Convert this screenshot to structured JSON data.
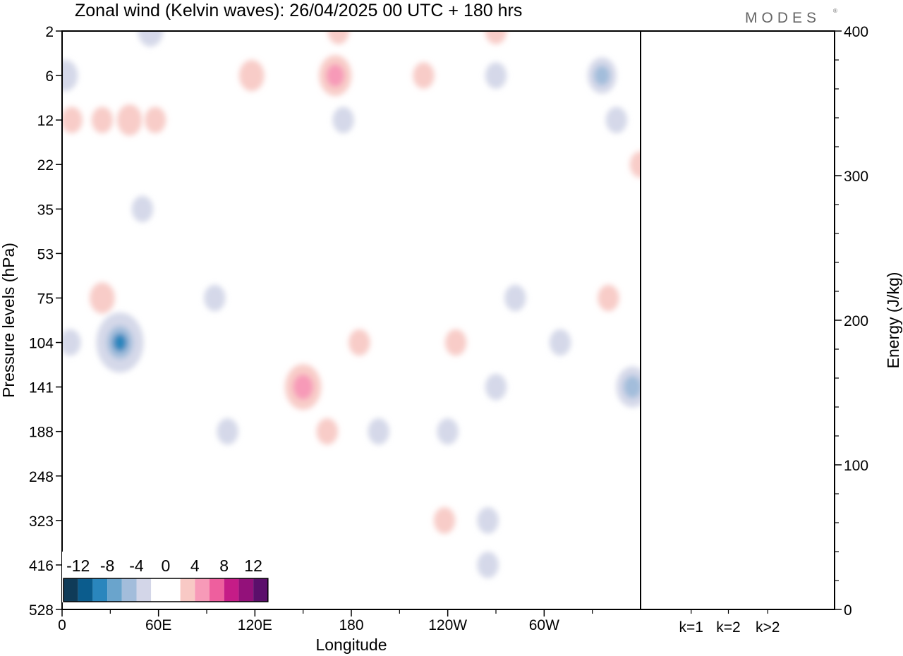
{
  "chart_data": {
    "type": "heatmap",
    "title": "Zonal wind (Kelvin waves):  26/04/2025  00 UTC  + 180 hrs",
    "logo": "MODES",
    "xlabel": "Longitude",
    "ylabel": "Pressure levels (hPa)",
    "x_ticks": [
      "0",
      "60E",
      "120E",
      "180",
      "120W",
      "60W"
    ],
    "x_tick_values": [
      0,
      60,
      120,
      180,
      240,
      300
    ],
    "xlim": [
      0,
      360
    ],
    "y_ticks": [
      "2",
      "6",
      "12",
      "22",
      "35",
      "53",
      "75",
      "104",
      "141",
      "188",
      "248",
      "323",
      "416",
      "528"
    ],
    "y_direction": "top-to-bottom",
    "colorbar": {
      "labels": [
        "-12",
        "-8",
        "-4",
        "0",
        "4",
        "8",
        "12"
      ],
      "colors": [
        "#0f3b58",
        "#0b5c8d",
        "#2a86bd",
        "#6aa4cc",
        "#a3bddb",
        "#d3d6e8",
        "#ffffff",
        "#ffffff",
        "#f8c9c5",
        "#f79ab8",
        "#ee5f9e",
        "#c51c87",
        "#93117a",
        "#5b0f6b"
      ],
      "placement": "bottom-left"
    },
    "contour_levels": [
      -12,
      -10,
      -8,
      -6,
      -4,
      -2,
      2,
      4,
      6,
      8,
      10,
      12
    ],
    "anomalies": [
      {
        "lon": 2,
        "level": "6",
        "value": -3
      },
      {
        "lon": 55,
        "level": "2",
        "value": -3
      },
      {
        "lon": 6,
        "level": "12",
        "value": 2
      },
      {
        "lon": 25,
        "level": "12",
        "value": 2
      },
      {
        "lon": 42,
        "level": "12",
        "value": 3
      },
      {
        "lon": 58,
        "level": "12",
        "value": 2
      },
      {
        "lon": 118,
        "level": "6",
        "value": 3
      },
      {
        "lon": 170,
        "level": "6",
        "value": 5
      },
      {
        "lon": 172,
        "level": "2",
        "value": 2
      },
      {
        "lon": 225,
        "level": "6",
        "value": 2
      },
      {
        "lon": 270,
        "level": "2",
        "value": 2
      },
      {
        "lon": 270,
        "level": "6",
        "value": -2
      },
      {
        "lon": 336,
        "level": "6",
        "value": -4
      },
      {
        "lon": 345,
        "level": "12",
        "value": -2
      },
      {
        "lon": 360,
        "level": "22",
        "value": 2
      },
      {
        "lon": 175,
        "level": "12",
        "value": -2
      },
      {
        "lon": 50,
        "level": "35",
        "value": -2
      },
      {
        "lon": 25,
        "level": "75",
        "value": 3
      },
      {
        "lon": 36,
        "level": "104",
        "value": -9
      },
      {
        "lon": 5,
        "level": "104",
        "value": -2
      },
      {
        "lon": 95,
        "level": "75",
        "value": -2
      },
      {
        "lon": 150,
        "level": "141",
        "value": 6
      },
      {
        "lon": 185,
        "level": "104",
        "value": 2
      },
      {
        "lon": 165,
        "level": "188",
        "value": 2
      },
      {
        "lon": 103,
        "level": "188",
        "value": -2
      },
      {
        "lon": 197,
        "level": "188",
        "value": -2
      },
      {
        "lon": 240,
        "level": "188",
        "value": -2
      },
      {
        "lon": 282,
        "level": "75",
        "value": -2
      },
      {
        "lon": 310,
        "level": "104",
        "value": -2
      },
      {
        "lon": 340,
        "level": "75",
        "value": 2
      },
      {
        "lon": 355,
        "level": "141",
        "value": -5
      },
      {
        "lon": 238,
        "level": "323",
        "value": 2
      },
      {
        "lon": 265,
        "level": "323",
        "value": -2
      },
      {
        "lon": 265,
        "level": "416",
        "value": -2
      },
      {
        "lon": 245,
        "level": "104",
        "value": 2
      },
      {
        "lon": 270,
        "level": "141",
        "value": -2
      }
    ],
    "energy_panel": {
      "ylabel": "Energy (J/kg)",
      "ylim": [
        0,
        400
      ],
      "y_ticks": [
        "0",
        "100",
        "200",
        "300",
        "400"
      ],
      "categories": [
        "k=1",
        "k=2",
        "k>2"
      ],
      "values": [
        0.3,
        0.2,
        0.3
      ]
    }
  }
}
